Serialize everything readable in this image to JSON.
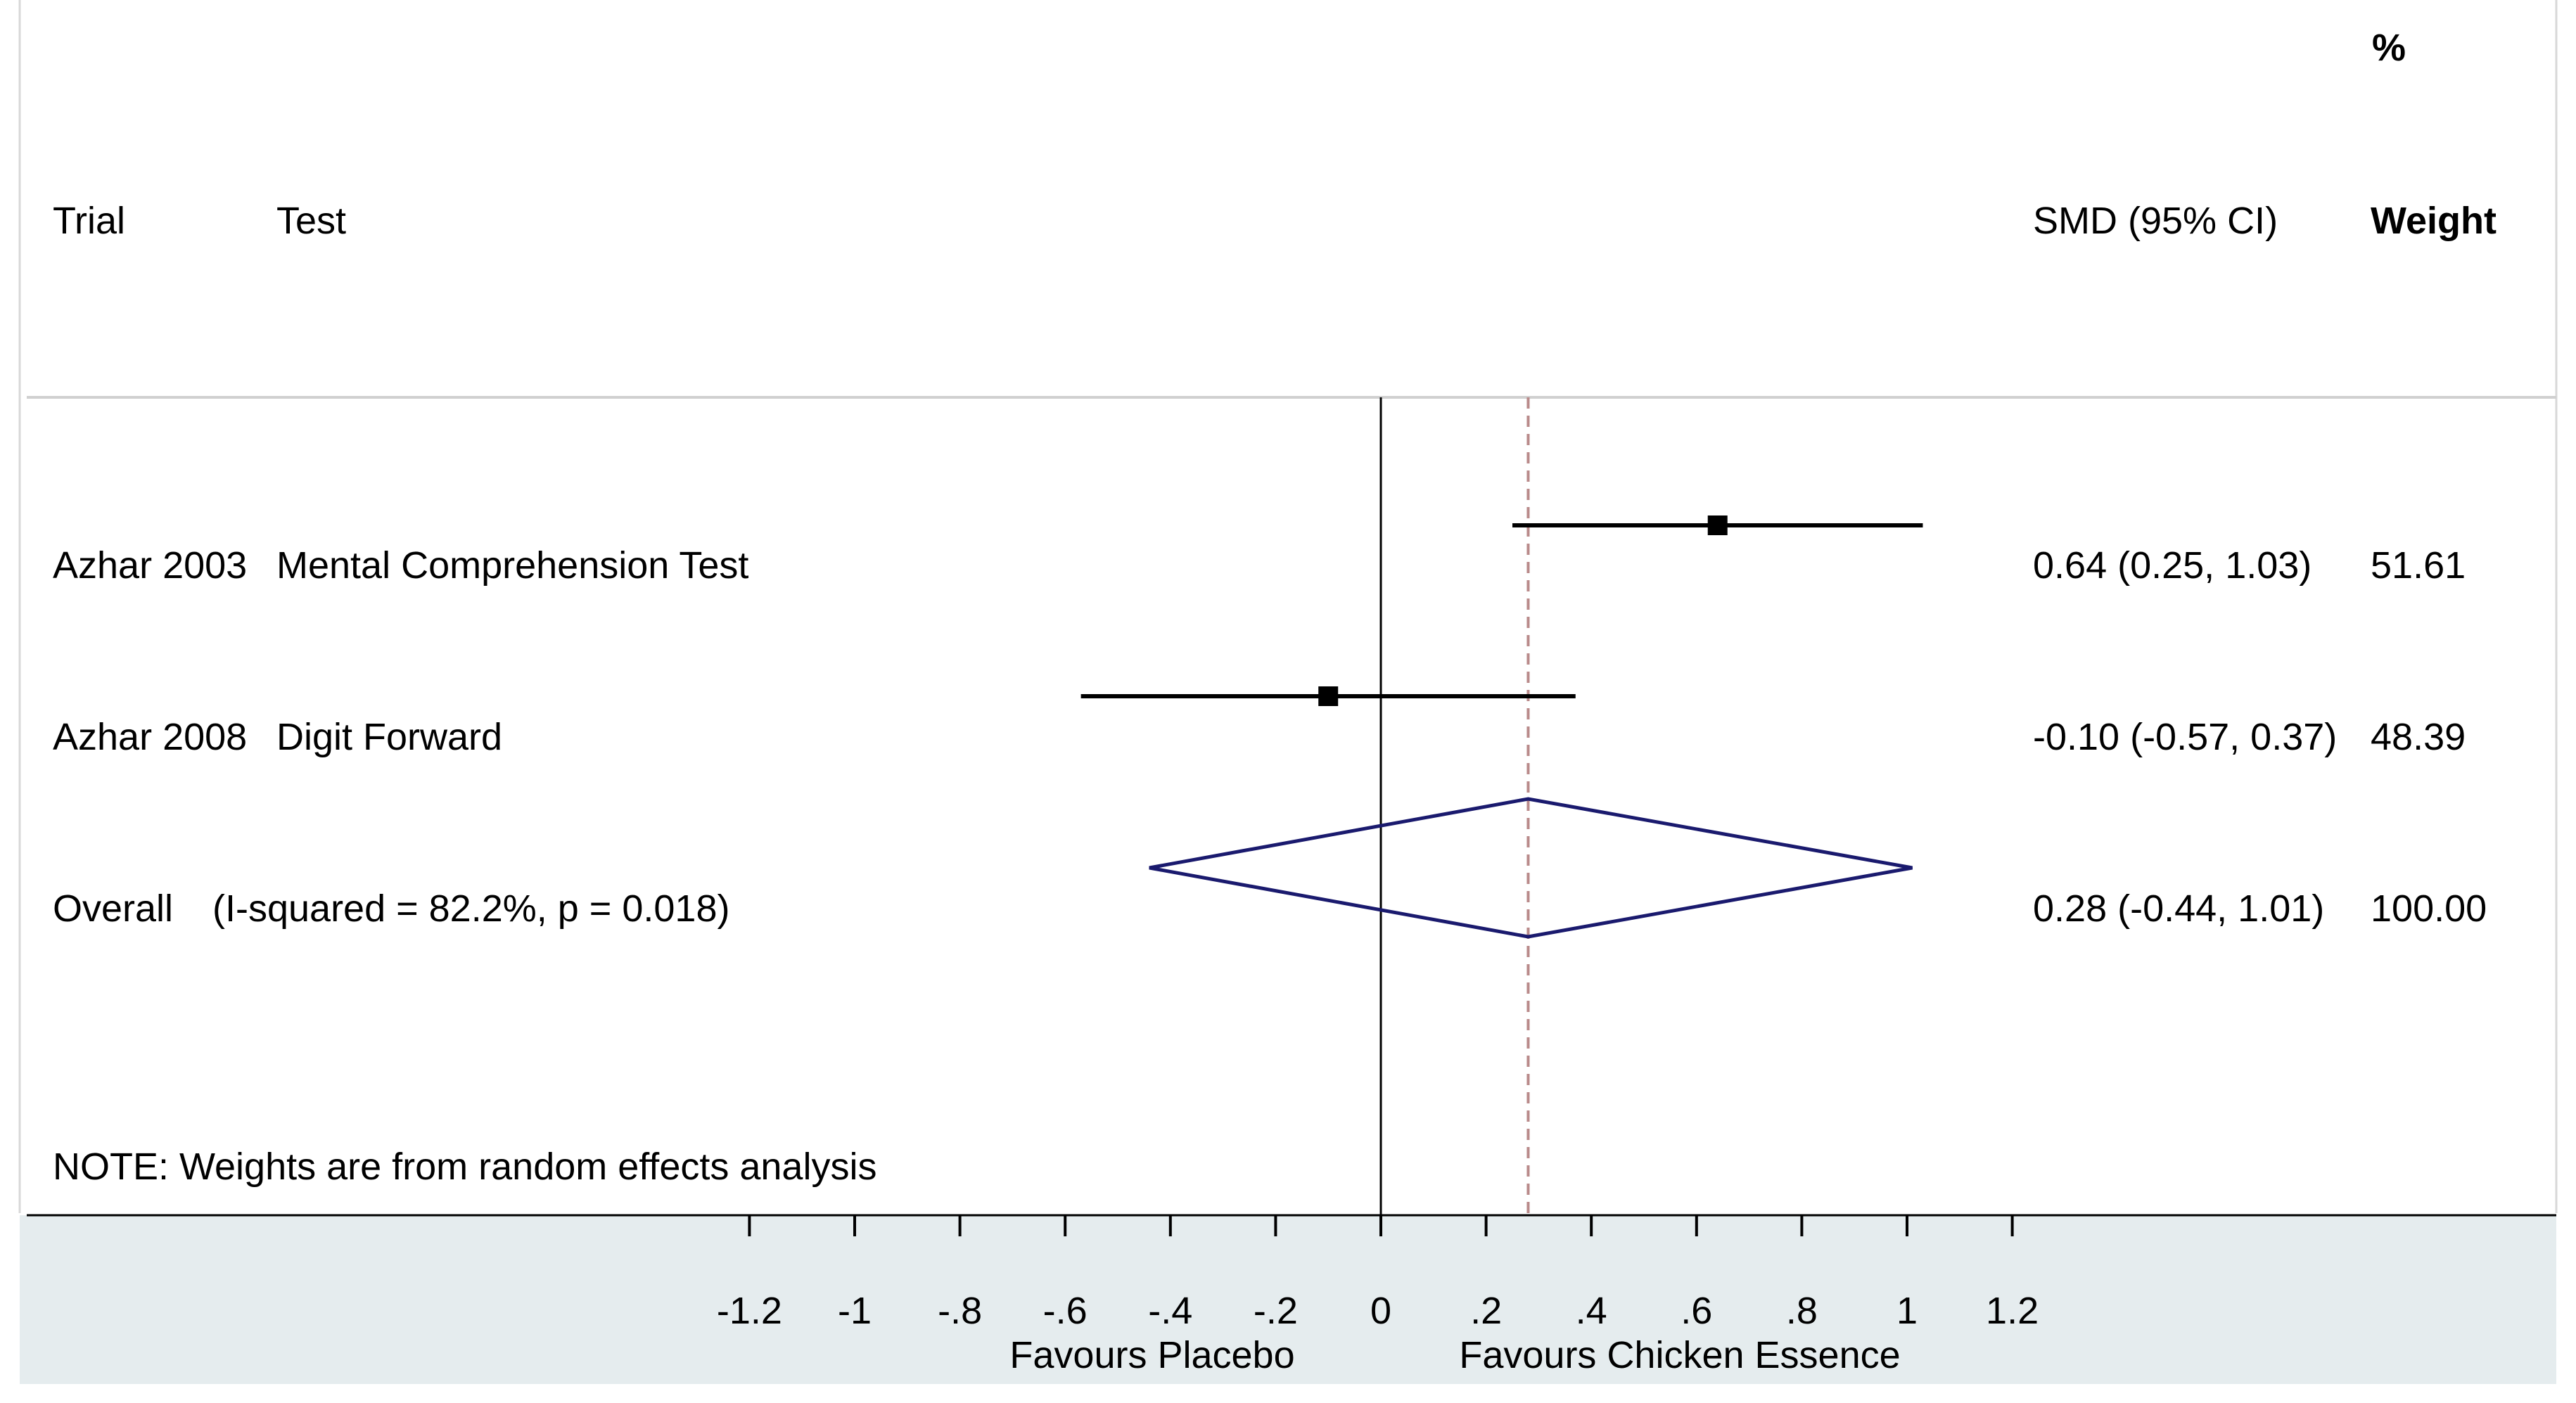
{
  "chart_data": {
    "type": "forest",
    "headers": {
      "trial": "Trial",
      "test": "Test",
      "effect": "SMD (95% CI)",
      "weight_pct": "%",
      "weight": "Weight"
    },
    "studies": [
      {
        "trial": "Azhar 2003",
        "test": "Mental Comprehension Test",
        "smd": 0.64,
        "lower": 0.25,
        "upper": 1.03,
        "ci_text": "0.64 (0.25, 1.03)",
        "weight": "51.61"
      },
      {
        "trial": "Azhar 2008",
        "test": "Digit Forward",
        "smd": -0.1,
        "lower": -0.57,
        "upper": 0.37,
        "ci_text": "-0.10 (-0.57, 0.37)",
        "weight": "48.39"
      }
    ],
    "overall": {
      "label": "Overall",
      "stats": "(I-squared = 82.2%, p = 0.018)",
      "smd": 0.28,
      "lower": -0.44,
      "upper": 1.01,
      "ci_text": "0.28 (-0.44, 1.01)",
      "weight": "100.00"
    },
    "note": "NOTE: Weights are from random effects analysis",
    "x_ticks": [
      -1.2,
      -1,
      -0.8,
      -0.6,
      -0.4,
      -0.2,
      0,
      0.2,
      0.4,
      0.6,
      0.8,
      1,
      1.2
    ],
    "x_tick_labels": [
      "-1.2",
      "-1",
      "-.8",
      "-.6",
      "-.4",
      "-.2",
      "0",
      ".2",
      ".4",
      ".6",
      ".8",
      "1",
      "1.2"
    ],
    "x_labels": {
      "left": "Favours   Placebo",
      "right": "Favours Chicken Essence"
    },
    "xlim": [
      -1.2,
      1.2
    ],
    "colors": {
      "diamond": "#1a1a6e",
      "dashed_line": "#b98a8a",
      "axis_band": "#e5ecee",
      "separator": "#d0d0d0"
    }
  }
}
